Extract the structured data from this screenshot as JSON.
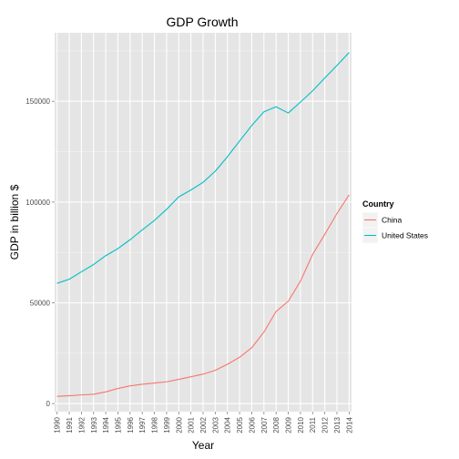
{
  "chart_data": {
    "type": "line",
    "title": "GDP Growth",
    "xlabel": "Year",
    "ylabel": "GDP in billion $",
    "x": [
      1990,
      1991,
      1992,
      1993,
      1994,
      1995,
      1996,
      1997,
      1998,
      1999,
      2000,
      2001,
      2002,
      2003,
      2004,
      2005,
      2006,
      2007,
      2008,
      2009,
      2010,
      2011,
      2012,
      2013,
      2014
    ],
    "x_tick_labels": [
      "1990",
      "1991",
      "1992",
      "1993",
      "1994",
      "1995",
      "1996",
      "1997",
      "1998",
      "1999",
      "2000",
      "2001",
      "2002",
      "2003",
      "2004",
      "2005",
      "2006",
      "2007",
      "2008",
      "2009",
      "2010",
      "2011",
      "2012",
      "2013",
      "2014"
    ],
    "xlim": [
      1989.8,
      2014.2
    ],
    "ylim": [
      -4000,
      184000
    ],
    "y_ticks": [
      0,
      50000,
      100000,
      150000
    ],
    "y_tick_labels": [
      "0",
      "50000",
      "100000",
      "150000"
    ],
    "grid": true,
    "legend": {
      "title": "Country",
      "position": "right"
    },
    "series": [
      {
        "name": "China",
        "color": "#f8766d",
        "values": [
          3600,
          3900,
          4300,
          4600,
          5800,
          7500,
          8800,
          9600,
          10200,
          10800,
          12000,
          13300,
          14600,
          16500,
          19500,
          23000,
          27700,
          35500,
          45700,
          50800,
          60700,
          74000,
          84000,
          94300,
          103600
        ]
      },
      {
        "name": "United States",
        "color": "#00bfc4",
        "values": [
          59700,
          61700,
          65400,
          69000,
          73400,
          76900,
          81300,
          86200,
          90900,
          96400,
          102600,
          106000,
          109800,
          115300,
          122500,
          130300,
          138000,
          144800,
          147300,
          144200,
          149600,
          155200,
          161600,
          167800,
          174200
        ]
      }
    ]
  }
}
